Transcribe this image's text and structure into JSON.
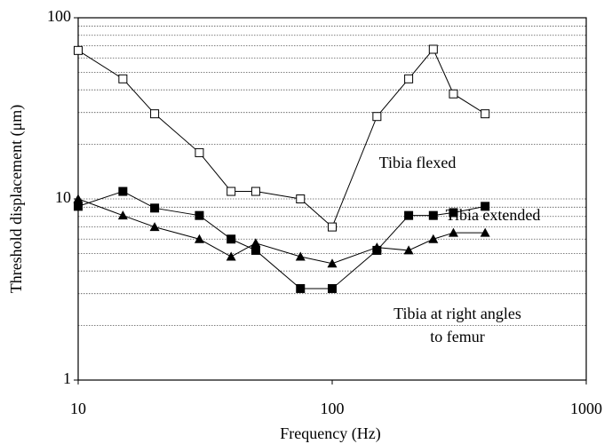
{
  "chart_data": {
    "type": "line",
    "x_label": "Frequency (Hz)",
    "y_label": "Threshold displacement (μm)",
    "x_log": true,
    "y_log": true,
    "xlim": [
      10,
      1000
    ],
    "ylim": [
      1,
      100
    ],
    "xticks": [
      10,
      100,
      1000
    ],
    "yticks": [
      1,
      10,
      100
    ],
    "y_minor_grid": [
      2,
      3,
      4,
      5,
      6,
      7,
      8,
      9,
      20,
      30,
      40,
      50,
      60,
      70,
      80,
      90
    ],
    "grid": true,
    "x": [
      10,
      15,
      20,
      30,
      40,
      50,
      75,
      100,
      150,
      200,
      250,
      300,
      400
    ],
    "series": [
      {
        "name": "Tibia flexed",
        "color": "#000000",
        "marker": "square-open",
        "values": [
          66,
          46,
          29.5,
          18,
          11,
          11,
          10,
          7,
          28.5,
          46,
          67,
          38,
          29.5
        ]
      },
      {
        "name": "Tibia extended",
        "color": "#000000",
        "marker": "square-filled",
        "values": [
          9.1,
          11,
          8.9,
          8.1,
          6,
          5.2,
          3.2,
          3.2,
          5.2,
          8.1,
          8.1,
          8.4,
          9.1
        ]
      },
      {
        "name": "Tibia at right angles to femur",
        "color": "#000000",
        "marker": "triangle-filled",
        "values": [
          10,
          8.1,
          7,
          6,
          4.8,
          5.7,
          4.8,
          4.4,
          5.4,
          5.2,
          6,
          6.5,
          6.5
        ]
      }
    ]
  }
}
